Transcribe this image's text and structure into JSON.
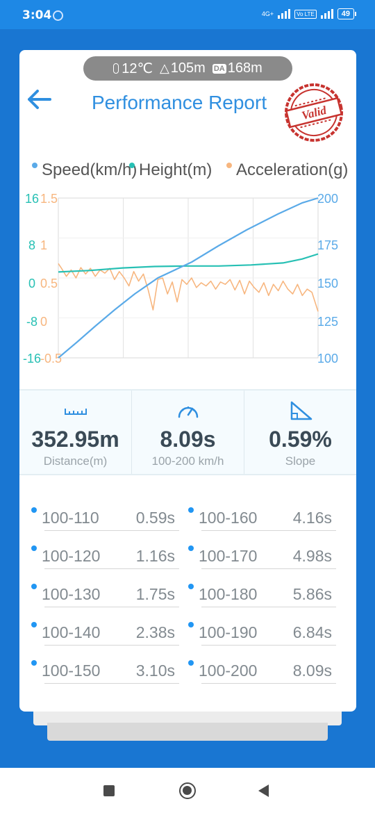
{
  "status_bar": {
    "time": "3:04",
    "network_label": "4G+",
    "volte_label": "Vo LTE",
    "battery": "49"
  },
  "header": {
    "temperature": "12℃",
    "altitude": "105m",
    "density_altitude_label": "DA",
    "density_altitude": "168m",
    "title": "Performance Report",
    "stamp_label": "Valid"
  },
  "chart_data": {
    "type": "line",
    "legend": [
      {
        "name": "Speed(km/h)",
        "color": "#5aaae8"
      },
      {
        "name": "Height(m)",
        "color": "#27c0b4"
      },
      {
        "name": "Acceleration(g)",
        "color": "#f7b67f"
      }
    ],
    "axes": {
      "height_ticks": [
        "16",
        "8",
        "0",
        "-8",
        "-16"
      ],
      "height_range": [
        -16,
        16
      ],
      "accel_ticks": [
        "1.5",
        "1",
        "0.5",
        "0",
        "-0.5"
      ],
      "accel_range": [
        -0.5,
        1.5
      ],
      "speed_ticks": [
        "200",
        "175",
        "150",
        "125",
        "100"
      ],
      "speed_range": [
        100,
        200
      ]
    },
    "time_range_s": [
      0,
      8.09
    ],
    "speed": {
      "t": [
        0,
        0.59,
        1.16,
        1.75,
        2.38,
        3.1,
        4.16,
        4.98,
        5.86,
        6.84,
        7.6,
        8.09
      ],
      "v": [
        100,
        110,
        120,
        130,
        140,
        150,
        160,
        170,
        180,
        190,
        197,
        200
      ]
    },
    "height": {
      "t": [
        0,
        1,
        2,
        3,
        4,
        5,
        6,
        7,
        7.6,
        8.09
      ],
      "v": [
        1.2,
        1.5,
        2.0,
        2.3,
        2.4,
        2.4,
        2.6,
        3.0,
        3.8,
        4.8
      ]
    },
    "acceleration": {
      "t": [
        0,
        0.1,
        0.25,
        0.4,
        0.55,
        0.7,
        0.85,
        1.0,
        1.15,
        1.3,
        1.45,
        1.6,
        1.75,
        1.9,
        2.05,
        2.2,
        2.35,
        2.5,
        2.65,
        2.8,
        2.95,
        3.1,
        3.25,
        3.4,
        3.55,
        3.7,
        3.85,
        4.0,
        4.15,
        4.3,
        4.45,
        4.6,
        4.75,
        4.9,
        5.05,
        5.2,
        5.35,
        5.5,
        5.65,
        5.8,
        5.95,
        6.1,
        6.25,
        6.4,
        6.55,
        6.7,
        6.85,
        7.0,
        7.15,
        7.3,
        7.45,
        7.6,
        7.75,
        7.9,
        8.09
      ],
      "v": [
        0.68,
        0.62,
        0.52,
        0.6,
        0.5,
        0.63,
        0.55,
        0.62,
        0.52,
        0.6,
        0.56,
        0.62,
        0.48,
        0.58,
        0.5,
        0.4,
        0.58,
        0.46,
        0.55,
        0.35,
        0.1,
        0.48,
        0.5,
        0.3,
        0.45,
        0.2,
        0.48,
        0.42,
        0.5,
        0.38,
        0.44,
        0.4,
        0.46,
        0.36,
        0.45,
        0.42,
        0.48,
        0.35,
        0.47,
        0.3,
        0.46,
        0.38,
        0.32,
        0.44,
        0.28,
        0.42,
        0.34,
        0.46,
        0.36,
        0.3,
        0.42,
        0.28,
        0.36,
        0.32,
        0.08
      ]
    }
  },
  "stats": {
    "distance_value": "352.95m",
    "distance_label": "Distance(m)",
    "time_value": "8.09s",
    "time_label": "100-200 km/h",
    "slope_value": "0.59%",
    "slope_label": "Slope"
  },
  "splits": [
    {
      "range": "100-110",
      "time": "0.59s"
    },
    {
      "range": "100-120",
      "time": "1.16s"
    },
    {
      "range": "100-130",
      "time": "1.75s"
    },
    {
      "range": "100-140",
      "time": "2.38s"
    },
    {
      "range": "100-150",
      "time": "3.10s"
    },
    {
      "range": "100-160",
      "time": "4.16s"
    },
    {
      "range": "100-170",
      "time": "4.98s"
    },
    {
      "range": "100-180",
      "time": "5.86s"
    },
    {
      "range": "100-190",
      "time": "6.84s"
    },
    {
      "range": "100-200",
      "time": "8.09s"
    }
  ]
}
